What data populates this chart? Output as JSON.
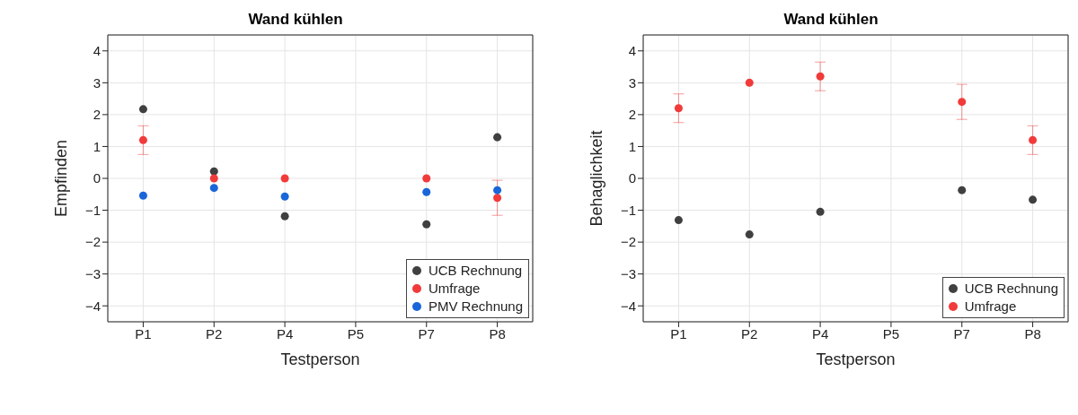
{
  "chart_data": [
    {
      "type": "scatter",
      "title": "Wand kühlen",
      "xlabel": "Testperson",
      "ylabel": "Empfinden",
      "categories": [
        "P1",
        "P2",
        "P4",
        "P5",
        "P7",
        "P8"
      ],
      "ylim": [
        -4.5,
        4.5
      ],
      "yticks": [
        -4,
        -3,
        -2,
        -1,
        0,
        1,
        2,
        3,
        4
      ],
      "grid": true,
      "legend": "bottom right",
      "marker": "circle",
      "series": [
        {
          "name": "UCB Rechnung",
          "color": "#404040",
          "values": [
            2.17,
            0.22,
            -1.19,
            null,
            -1.44,
            1.29
          ]
        },
        {
          "name": "Umfrage",
          "color": "#f23a3a",
          "values": [
            1.2,
            0,
            0,
            null,
            0,
            -0.61
          ],
          "errors": [
            0.45,
            null,
            null,
            null,
            null,
            0.55
          ]
        },
        {
          "name": "PMV Rechnung",
          "color": "#1a66d9",
          "values": [
            -0.54,
            -0.3,
            -0.57,
            null,
            -0.43,
            -0.37
          ]
        }
      ]
    },
    {
      "type": "scatter",
      "title": "Wand kühlen",
      "xlabel": "Testperson",
      "ylabel": "Behaglichkeit",
      "categories": [
        "P1",
        "P2",
        "P4",
        "P5",
        "P7",
        "P8"
      ],
      "ylim": [
        -4.5,
        4.5
      ],
      "yticks": [
        -4,
        -3,
        -2,
        -1,
        0,
        1,
        2,
        3,
        4
      ],
      "grid": true,
      "legend": "bottom right",
      "marker": "circle",
      "series": [
        {
          "name": "UCB Rechnung",
          "color": "#404040",
          "values": [
            -1.31,
            -1.76,
            -1.05,
            null,
            -0.37,
            -0.67
          ]
        },
        {
          "name": "Umfrage",
          "color": "#f23a3a",
          "values": [
            2.2,
            3.0,
            3.2,
            null,
            2.4,
            1.2
          ],
          "errors": [
            0.45,
            null,
            0.45,
            null,
            [
              1.85,
              2.95
            ],
            [
              0.75,
              1.65
            ]
          ]
        }
      ]
    }
  ]
}
